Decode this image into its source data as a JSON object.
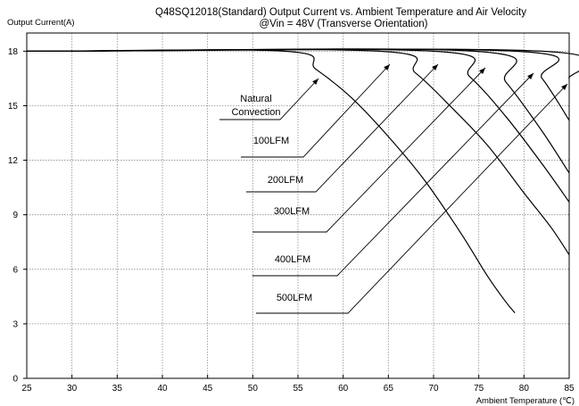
{
  "chart_data": {
    "type": "line",
    "title": "Q48SQ12018(Standard) Output Current vs. Ambient Temperature and Air Velocity",
    "subtitle": "@Vin = 48V (Transverse Orientation)",
    "ylabel": "Output Current(A)",
    "xlabel": "Ambient Temperature (℃)",
    "xlim": [
      25,
      85
    ],
    "ylim": [
      0,
      19
    ],
    "xticks": [
      25,
      30,
      35,
      40,
      45,
      50,
      55,
      60,
      65,
      70,
      75,
      80,
      85
    ],
    "yticks": [
      0,
      3,
      6,
      9,
      12,
      15,
      18
    ],
    "grid": true,
    "series": [
      {
        "name": "Natural Convection",
        "x": [
          25,
          53.5,
          57,
          61,
          65,
          69,
          73,
          76,
          78,
          79
        ],
        "y": [
          18,
          18,
          17,
          15.4,
          13.3,
          10.9,
          8.0,
          5.6,
          4.2,
          3.6
        ]
      },
      {
        "name": "100LFM",
        "x": [
          25,
          64,
          68,
          72,
          76,
          80,
          83,
          85
        ],
        "y": [
          18,
          18,
          16.8,
          14.9,
          12.8,
          10.2,
          8.3,
          6.8
        ]
      },
      {
        "name": "200LFM",
        "x": [
          25,
          70,
          74,
          78,
          82,
          85
        ],
        "y": [
          18,
          18,
          16.6,
          14.4,
          11.8,
          9.7
        ]
      },
      {
        "name": "300LFM",
        "x": [
          25,
          74.5,
          78,
          82,
          85
        ],
        "y": [
          18,
          18,
          16.3,
          13.6,
          11.3
        ]
      },
      {
        "name": "400LFM",
        "x": [
          25,
          79,
          82,
          85
        ],
        "y": [
          18,
          18,
          16.5,
          14.2
        ]
      },
      {
        "name": "500LFM",
        "x": [
          25,
          82,
          85
        ],
        "y": [
          18,
          18,
          16.5
        ]
      }
    ]
  }
}
